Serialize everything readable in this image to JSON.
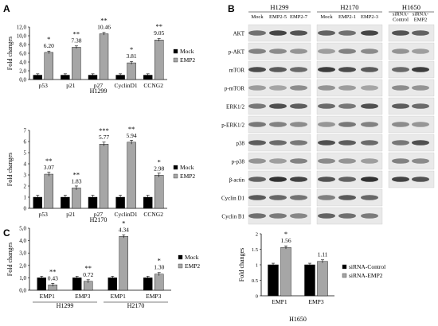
{
  "panels": {
    "a": "A",
    "b": "B",
    "c": "C"
  },
  "chart_data": [
    {
      "id": "a1",
      "type": "bar",
      "title": "H1299",
      "ylabel": "Fold changes",
      "ylim": [
        0,
        12
      ],
      "yticks": [
        "0,0",
        "2,0",
        "4,0",
        "6,0",
        "8,0",
        "10,0",
        "12,0"
      ],
      "categories": [
        "p53",
        "p21",
        "p27",
        "CyclinD1",
        "CCNG2"
      ],
      "series": [
        {
          "name": "Mock",
          "color": "#000000",
          "values": [
            1,
            1,
            1,
            1,
            1
          ]
        },
        {
          "name": "EMP2",
          "color": "#a6a6a6",
          "values": [
            6.2,
            7.38,
            10.46,
            3.81,
            9.05
          ]
        }
      ],
      "labels": [
        "6.20",
        "7.38",
        "10.46",
        "3.81",
        "9.05"
      ],
      "sig": [
        "*",
        "**",
        "**",
        "*",
        "**"
      ],
      "legend": "right"
    },
    {
      "id": "a2",
      "type": "bar",
      "title": "H2170",
      "ylabel": "Fold changes",
      "ylim": [
        0,
        7
      ],
      "yticks": [
        "0",
        "1",
        "2",
        "3",
        "4",
        "5",
        "6",
        "7"
      ],
      "categories": [
        "p53",
        "p21",
        "p27",
        "CyclinD1",
        "CCNG2"
      ],
      "series": [
        {
          "name": "Mock",
          "color": "#000000",
          "values": [
            1,
            1,
            1,
            1,
            1
          ]
        },
        {
          "name": "EMP2",
          "color": "#a6a6a6",
          "values": [
            3.07,
            1.83,
            5.77,
            5.94,
            2.98
          ]
        }
      ],
      "labels": [
        "3.07",
        "1.83",
        "5.77",
        "5.94",
        "2.98"
      ],
      "sig": [
        "**",
        "**",
        "***",
        "**",
        "*"
      ],
      "legend": "right"
    },
    {
      "id": "c1",
      "type": "bar",
      "ylabel": "Fold changes",
      "ylim": [
        0,
        5
      ],
      "yticks": [
        "0,0",
        "1,0",
        "2,0",
        "3,0",
        "4,0",
        "5,0"
      ],
      "categories": [
        "EMP1",
        "EMP3",
        "EMP1",
        "EMP3"
      ],
      "groups": [
        {
          "name": "H1299",
          "span": [
            0,
            1
          ]
        },
        {
          "name": "H2170",
          "span": [
            2,
            3
          ]
        }
      ],
      "series": [
        {
          "name": "Mock",
          "color": "#000000",
          "values": [
            1,
            1,
            1,
            1
          ]
        },
        {
          "name": "EMP2",
          "color": "#a6a6a6",
          "values": [
            0.43,
            0.72,
            4.34,
            1.3
          ]
        }
      ],
      "labels": [
        "0.43",
        "0.72",
        "4.34",
        "1.30"
      ],
      "sig": [
        "**",
        "**",
        "*",
        "*"
      ],
      "legend": "right"
    },
    {
      "id": "h1650",
      "type": "bar",
      "title": "H1650",
      "ylabel": "Fold changes",
      "ylim": [
        0,
        2
      ],
      "yticks": [
        "0",
        "0.5",
        "1",
        "1.5",
        "2"
      ],
      "categories": [
        "EMP1",
        "EMP3"
      ],
      "series": [
        {
          "name": "siRNA-Control",
          "color": "#000000",
          "values": [
            1,
            1
          ]
        },
        {
          "name": "siRNA-EMP2",
          "color": "#a6a6a6",
          "values": [
            1.56,
            1.11
          ]
        }
      ],
      "labels": [
        "1.56",
        "1.11"
      ],
      "sig": [
        "*",
        ""
      ],
      "legend": "right"
    }
  ],
  "blot": {
    "groups": [
      {
        "name": "H1299",
        "lanes": [
          "Mock",
          "EMP2-5",
          "EMP2-7"
        ]
      },
      {
        "name": "H2170",
        "lanes": [
          "Mock",
          "EMP2-1",
          "EMP2-3"
        ]
      },
      {
        "name": "H1650",
        "lanes": [
          "siRNA-\nControl",
          "siRNA-\nEMP2"
        ]
      }
    ],
    "rows": [
      "AKT",
      "p-AKT",
      "mTOR",
      "p-mTOR",
      "ERK1/2",
      "p-ERK1/2",
      "p38",
      "p-p38",
      "β-actin",
      "Cyclin D1",
      "Cyclin B1"
    ],
    "h1650_rows": 9
  }
}
